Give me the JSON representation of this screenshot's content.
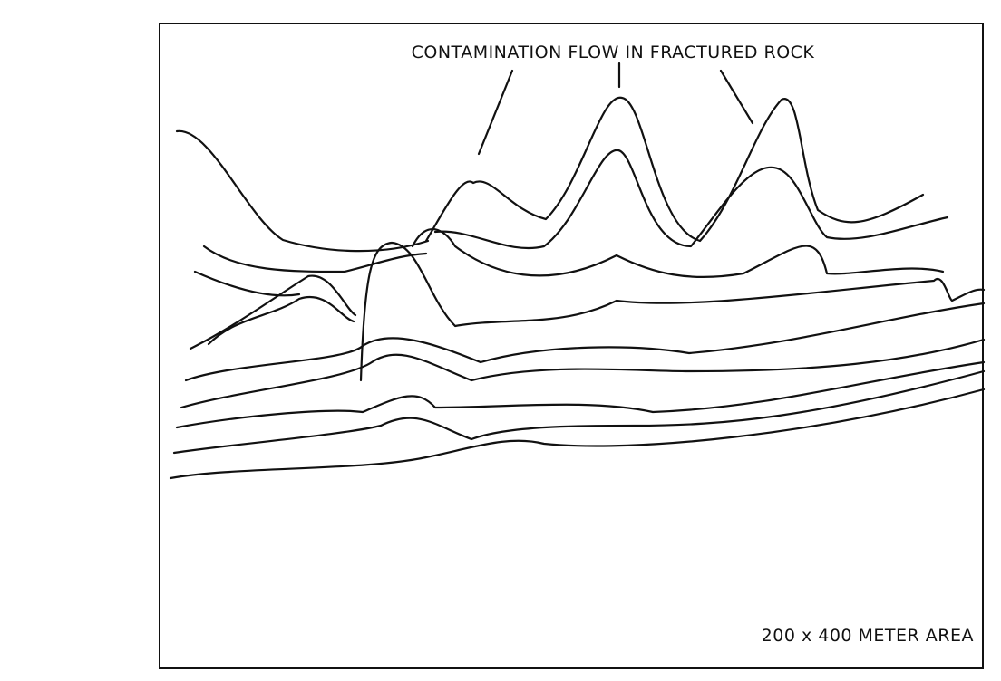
{
  "figure": {
    "title": "CONTAMINATION FLOW IN FRACTURED ROCK",
    "caption": "200 x 400 METER AREA"
  }
}
